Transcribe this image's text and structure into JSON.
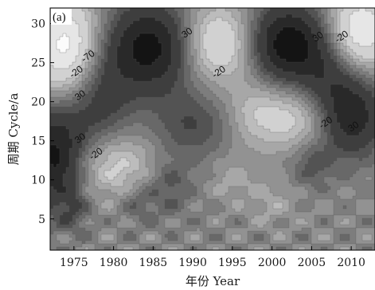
{
  "chart_data": {
    "type": "heatmap",
    "panel_label": "(a)",
    "xlabel": "年份 Year",
    "ylabel": "周期 Cycle/a",
    "xlim": [
      1972,
      2013
    ],
    "ylim": [
      1,
      32
    ],
    "x_ticks": [
      {
        "value": 1975,
        "label": "1975"
      },
      {
        "value": 1980,
        "label": "1980"
      },
      {
        "value": 1985,
        "label": "1985"
      },
      {
        "value": 1990,
        "label": "1990"
      },
      {
        "value": 1995,
        "label": "1995"
      },
      {
        "value": 2000,
        "label": "2000"
      },
      {
        "value": 2005,
        "label": "2005"
      },
      {
        "value": 2010,
        "label": "2010"
      }
    ],
    "y_ticks": [
      {
        "value": 5,
        "label": "5"
      },
      {
        "value": 10,
        "label": "10"
      },
      {
        "value": 15,
        "label": "15"
      },
      {
        "value": 20,
        "label": "20"
      },
      {
        "value": 25,
        "label": "25"
      },
      {
        "value": 30,
        "label": "30"
      }
    ],
    "levels": [
      -70,
      -50,
      -30,
      -20,
      -10,
      0,
      10,
      20,
      30,
      50,
      70
    ],
    "colormap": {
      "low": "#fbfbfb",
      "high": "#141414"
    },
    "features": [
      {
        "x": 1974,
        "y": 27,
        "sx": 3.0,
        "sy": 4.5,
        "amp": -80
      },
      {
        "x": 1993,
        "y": 27.5,
        "sx": 4.0,
        "sy": 3.5,
        "amp": -60
      },
      {
        "x": 2011,
        "y": 29,
        "sx": 3.0,
        "sy": 3.5,
        "amp": -75
      },
      {
        "x": 2004,
        "y": 18,
        "sx": 4.0,
        "sy": 3.0,
        "amp": -45
      },
      {
        "x": 1980,
        "y": 12,
        "sx": 3.5,
        "sy": 3.0,
        "amp": -40
      },
      {
        "x": 1985,
        "y": 27,
        "sx": 4.0,
        "sy": 4.0,
        "amp": 85
      },
      {
        "x": 2001.5,
        "y": 27.5,
        "sx": 3.5,
        "sy": 3.5,
        "amp": 85
      },
      {
        "x": 1972.5,
        "y": 13,
        "sx": 2.5,
        "sy": 4.5,
        "amp": 75
      },
      {
        "x": 2010,
        "y": 18,
        "sx": 3.0,
        "sy": 3.5,
        "amp": 65
      },
      {
        "x": 1978,
        "y": 20,
        "sx": 3.0,
        "sy": 5.0,
        "amp": 40
      },
      {
        "x": 2007,
        "y": 23,
        "sx": 3.0,
        "sy": 5.0,
        "amp": 40
      },
      {
        "x": 1990,
        "y": 17,
        "sx": 3.5,
        "sy": 3.0,
        "amp": 30
      },
      {
        "x": 1997.5,
        "y": 18.5,
        "sx": 2.5,
        "sy": 3.0,
        "amp": -20
      },
      {
        "x": 1987,
        "y": 9,
        "sx": 2.0,
        "sy": 2.5,
        "amp": 25
      },
      {
        "x": 2005,
        "y": 12,
        "sx": 1.8,
        "sy": 2.0,
        "amp": 25
      },
      {
        "x": 1995,
        "y": 10,
        "sx": 2.0,
        "sy": 2.0,
        "amp": -15
      },
      {
        "x": 1983,
        "y": 7,
        "sx": 1.5,
        "sy": 1.8,
        "amp": 20
      },
      {
        "x": 1975,
        "y": 6,
        "sx": 1.5,
        "sy": 2.0,
        "amp": 20
      },
      {
        "x": 2000,
        "y": 7,
        "sx": 2.0,
        "sy": 2.0,
        "amp": -15
      }
    ],
    "contour_labels": [
      {
        "x": 1977,
        "y": 25.5,
        "text": "-70"
      },
      {
        "x": 1975.5,
        "y": 23.5,
        "text": "-20"
      },
      {
        "x": 1976,
        "y": 20.5,
        "text": "30"
      },
      {
        "x": 1976,
        "y": 15,
        "text": "30"
      },
      {
        "x": 1978,
        "y": 13,
        "text": "-20"
      },
      {
        "x": 1989.5,
        "y": 28.5,
        "text": "30"
      },
      {
        "x": 1993.5,
        "y": 23.5,
        "text": "-20"
      },
      {
        "x": 2006,
        "y": 28,
        "text": "30"
      },
      {
        "x": 2009,
        "y": 28,
        "text": "-20"
      },
      {
        "x": 2007,
        "y": 17,
        "text": "-20"
      },
      {
        "x": 2010.5,
        "y": 16.5,
        "text": "30"
      }
    ]
  }
}
